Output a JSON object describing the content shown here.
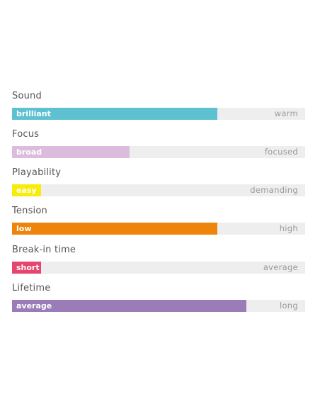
{
  "metrics": [
    {
      "label": "Sound",
      "low": "brilliant",
      "high": "warm",
      "level": 0.7,
      "color": "#5ec1d1"
    },
    {
      "label": "Focus",
      "low": "broad",
      "high": "focused",
      "level": 0.4,
      "color": "#dcbcdc"
    },
    {
      "label": "Playability",
      "low": "easy",
      "high": "demanding",
      "level": 0.1,
      "color": "#f7ec0c"
    },
    {
      "label": "Tension",
      "low": "low",
      "high": "high",
      "level": 0.7,
      "color": "#ee840c"
    },
    {
      "label": "Break-in time",
      "low": "short",
      "high": "average",
      "level": 0.1,
      "color": "#e6456d"
    },
    {
      "label": "Lifetime",
      "low": "average",
      "high": "long",
      "level": 0.8,
      "color": "#9a7db8"
    }
  ]
}
